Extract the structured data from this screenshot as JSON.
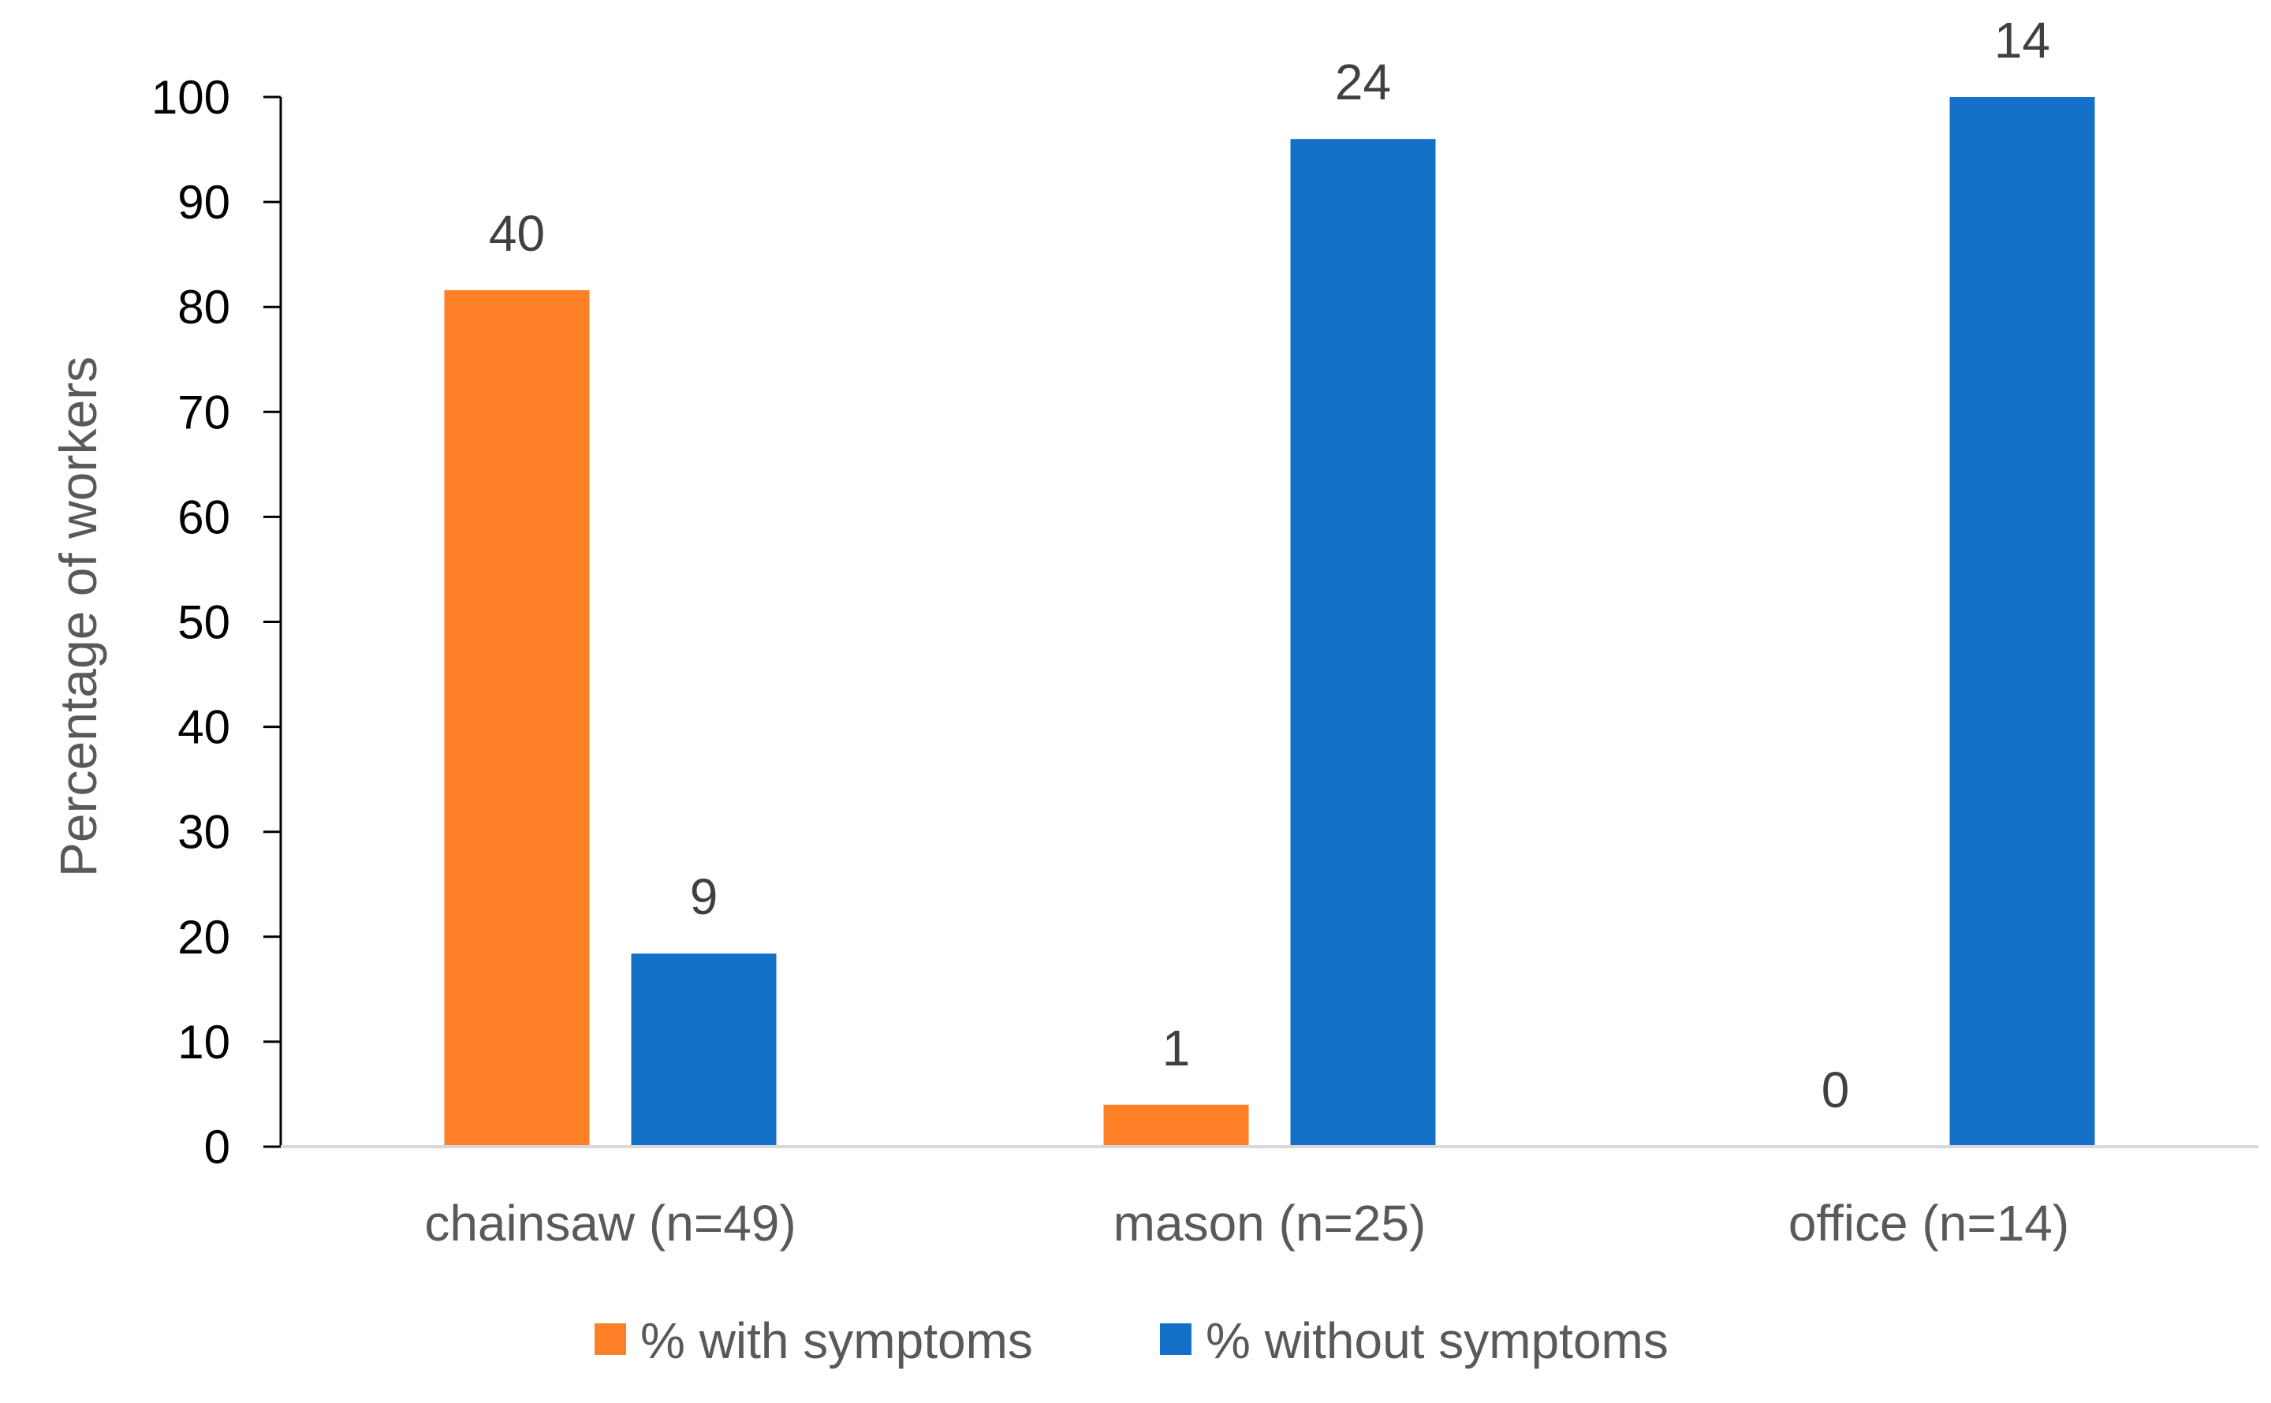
{
  "chart_data": {
    "type": "bar",
    "title": "",
    "xlabel": "",
    "ylabel": "Percentage of workers",
    "ylim": [
      0,
      100
    ],
    "yticks": [
      0,
      10,
      20,
      30,
      40,
      50,
      60,
      70,
      80,
      90,
      100
    ],
    "categories": [
      "chainsaw (n=49)",
      "mason (n=25)",
      "office (n=14)"
    ],
    "series": [
      {
        "name": "% with symptoms",
        "color": "#FF7F27",
        "values": [
          81.6,
          4.0,
          0.0
        ],
        "labels": [
          "40",
          "1",
          "0"
        ]
      },
      {
        "name": "% without symptoms",
        "color": "#1570C8",
        "values": [
          18.4,
          96.0,
          100.0
        ],
        "labels": [
          "9",
          "24",
          "14"
        ]
      }
    ],
    "legend": "bottom-center",
    "grid": false
  }
}
